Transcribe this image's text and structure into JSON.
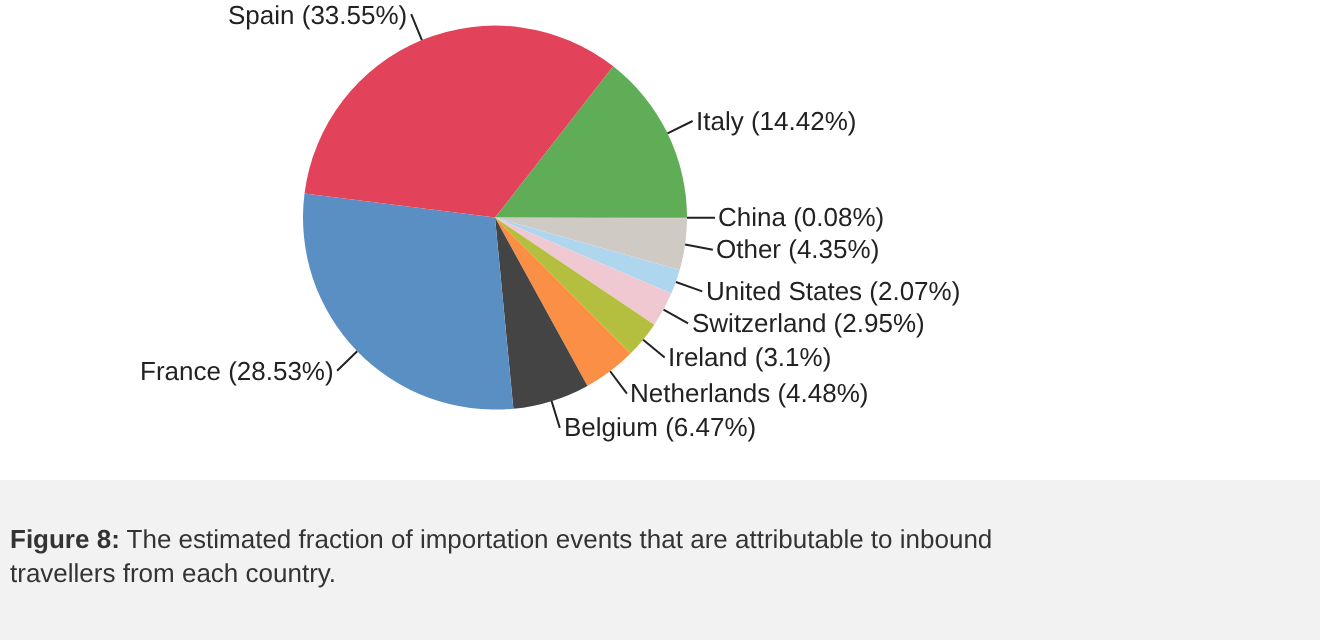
{
  "chart_data": {
    "type": "pie",
    "categories": [
      "Italy",
      "China",
      "Other",
      "United States",
      "Switzerland",
      "Ireland",
      "Netherlands",
      "Belgium",
      "France",
      "Spain"
    ],
    "values": [
      14.42,
      0.08,
      4.35,
      2.07,
      2.95,
      3.1,
      4.48,
      6.47,
      28.53,
      33.55
    ],
    "value_labels": [
      "(14.42%)",
      "(0.08%)",
      "(4.35%)",
      "(2.07%)",
      "(2.95%)",
      "(3.1%)",
      "(4.48%)",
      "(6.47%)",
      "(28.53%)",
      "(33.55%)"
    ],
    "colors": [
      "#5fad56",
      "#8c8c8c",
      "#cfcbc4",
      "#afd6ef",
      "#f0c8d2",
      "#b5bf3f",
      "#fb8f45",
      "#444444",
      "#5a8fc4",
      "#e2435a"
    ],
    "legend": false,
    "annotations": [
      "Figure 8: The estimated fraction of importation events that are attributable to inbound travellers from each country."
    ]
  }
}
